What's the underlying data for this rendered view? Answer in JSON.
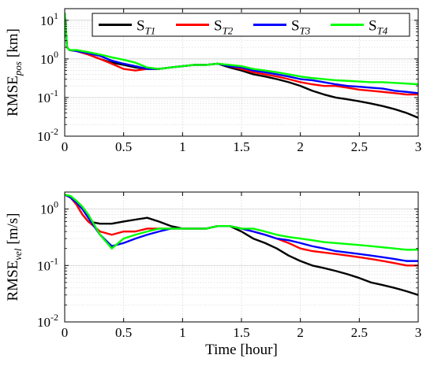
{
  "chart_data": [
    {
      "type": "line",
      "ylabel": "RMSE",
      "ylabel_sub": "pos",
      "yunit": "[km]",
      "yscale": "log",
      "xlim": [
        0,
        3
      ],
      "ylim": [
        0.01,
        20
      ],
      "xticks": [
        "0",
        "0.5",
        "1",
        "1.5",
        "2",
        "2.5",
        "3"
      ],
      "yticks": [
        {
          "base": "10",
          "exp": "-2",
          "value": 0.01
        },
        {
          "base": "10",
          "exp": "-1",
          "value": 0.1
        },
        {
          "base": "10",
          "exp": "0",
          "value": 1
        },
        {
          "base": "10",
          "exp": "1",
          "value": 10
        }
      ],
      "grid": true,
      "legend": {
        "placement": "top",
        "orientation": "horizontal"
      },
      "series": [
        {
          "name": "S",
          "sub": "T1",
          "color": "#000000",
          "x": [
            0,
            0.02,
            0.04,
            0.1,
            0.2,
            0.3,
            0.4,
            0.5,
            0.6,
            0.7,
            0.8,
            0.9,
            1.0,
            1.1,
            1.2,
            1.3,
            1.4,
            1.5,
            1.6,
            1.7,
            1.8,
            1.9,
            2.0,
            2.1,
            2.2,
            2.3,
            2.4,
            2.5,
            2.6,
            2.7,
            2.8,
            2.9,
            3.0
          ],
          "y": [
            15,
            2.0,
            1.7,
            1.6,
            1.3,
            1.0,
            0.8,
            0.7,
            0.6,
            0.55,
            0.55,
            0.6,
            0.65,
            0.7,
            0.7,
            0.75,
            0.6,
            0.5,
            0.4,
            0.35,
            0.3,
            0.25,
            0.2,
            0.15,
            0.12,
            0.1,
            0.09,
            0.08,
            0.07,
            0.06,
            0.05,
            0.04,
            0.03
          ]
        },
        {
          "name": "S",
          "sub": "T2",
          "color": "#ff0000",
          "x": [
            0,
            0.02,
            0.04,
            0.1,
            0.2,
            0.3,
            0.4,
            0.5,
            0.6,
            0.7,
            0.8,
            0.9,
            1.0,
            1.1,
            1.2,
            1.3,
            1.4,
            1.5,
            1.6,
            1.7,
            1.8,
            1.9,
            2.0,
            2.1,
            2.2,
            2.3,
            2.4,
            2.5,
            2.6,
            2.7,
            2.8,
            2.9,
            3.0
          ],
          "y": [
            15,
            2.0,
            1.7,
            1.6,
            1.3,
            1.0,
            0.75,
            0.55,
            0.5,
            0.55,
            0.55,
            0.6,
            0.65,
            0.7,
            0.7,
            0.75,
            0.65,
            0.55,
            0.45,
            0.4,
            0.35,
            0.3,
            0.25,
            0.22,
            0.2,
            0.2,
            0.18,
            0.16,
            0.15,
            0.14,
            0.13,
            0.12,
            0.12
          ]
        },
        {
          "name": "S",
          "sub": "T3",
          "color": "#0000ff",
          "x": [
            0,
            0.02,
            0.04,
            0.1,
            0.2,
            0.3,
            0.4,
            0.5,
            0.6,
            0.7,
            0.8,
            0.9,
            1.0,
            1.1,
            1.2,
            1.3,
            1.4,
            1.5,
            1.6,
            1.7,
            1.8,
            1.9,
            2.0,
            2.1,
            2.2,
            2.3,
            2.4,
            2.5,
            2.6,
            2.7,
            2.8,
            2.9,
            3.0
          ],
          "y": [
            15,
            2.0,
            1.7,
            1.6,
            1.4,
            1.2,
            0.9,
            0.75,
            0.65,
            0.55,
            0.55,
            0.6,
            0.65,
            0.7,
            0.7,
            0.75,
            0.65,
            0.6,
            0.5,
            0.45,
            0.4,
            0.35,
            0.3,
            0.28,
            0.25,
            0.22,
            0.2,
            0.19,
            0.18,
            0.17,
            0.15,
            0.14,
            0.13
          ]
        },
        {
          "name": "S",
          "sub": "T4",
          "color": "#00ff00",
          "x": [
            0,
            0.02,
            0.04,
            0.1,
            0.2,
            0.3,
            0.4,
            0.5,
            0.6,
            0.7,
            0.8,
            0.9,
            1.0,
            1.1,
            1.2,
            1.3,
            1.4,
            1.5,
            1.6,
            1.7,
            1.8,
            1.9,
            2.0,
            2.1,
            2.2,
            2.3,
            2.4,
            2.5,
            2.6,
            2.7,
            2.8,
            2.9,
            3.0
          ],
          "y": [
            15,
            2.0,
            1.7,
            1.7,
            1.5,
            1.3,
            1.1,
            0.95,
            0.8,
            0.6,
            0.55,
            0.6,
            0.65,
            0.7,
            0.7,
            0.75,
            0.7,
            0.65,
            0.55,
            0.5,
            0.45,
            0.4,
            0.35,
            0.32,
            0.3,
            0.28,
            0.27,
            0.26,
            0.25,
            0.25,
            0.24,
            0.23,
            0.22
          ]
        }
      ]
    },
    {
      "type": "line",
      "ylabel": "RMSE",
      "ylabel_sub": "vel",
      "yunit": "[m/s]",
      "xlabel": "Time [hour]",
      "yscale": "log",
      "xlim": [
        0,
        3
      ],
      "ylim": [
        0.01,
        2
      ],
      "xticks": [
        "0",
        "0.5",
        "1",
        "1.5",
        "2",
        "2.5",
        "3"
      ],
      "yticks": [
        {
          "base": "10",
          "exp": "-2",
          "value": 0.01
        },
        {
          "base": "10",
          "exp": "-1",
          "value": 0.1
        },
        {
          "base": "10",
          "exp": "0",
          "value": 1
        }
      ],
      "grid": true,
      "series": [
        {
          "name": "S",
          "sub": "T1",
          "color": "#000000",
          "x": [
            0,
            0.05,
            0.1,
            0.15,
            0.2,
            0.3,
            0.4,
            0.5,
            0.6,
            0.7,
            0.8,
            0.9,
            1.0,
            1.1,
            1.2,
            1.3,
            1.4,
            1.5,
            1.6,
            1.7,
            1.8,
            1.9,
            2.0,
            2.1,
            2.2,
            2.3,
            2.4,
            2.5,
            2.6,
            2.7,
            2.8,
            2.9,
            3.0
          ],
          "y": [
            1.8,
            1.6,
            1.2,
            0.8,
            0.6,
            0.55,
            0.55,
            0.6,
            0.65,
            0.7,
            0.6,
            0.5,
            0.45,
            0.45,
            0.45,
            0.5,
            0.5,
            0.4,
            0.3,
            0.25,
            0.2,
            0.15,
            0.12,
            0.1,
            0.09,
            0.08,
            0.07,
            0.06,
            0.05,
            0.045,
            0.04,
            0.035,
            0.03
          ]
        },
        {
          "name": "S",
          "sub": "T2",
          "color": "#ff0000",
          "x": [
            0,
            0.05,
            0.1,
            0.15,
            0.2,
            0.3,
            0.4,
            0.5,
            0.6,
            0.7,
            0.8,
            0.9,
            1.0,
            1.1,
            1.2,
            1.3,
            1.4,
            1.5,
            1.6,
            1.7,
            1.8,
            1.9,
            2.0,
            2.1,
            2.2,
            2.3,
            2.4,
            2.5,
            2.6,
            2.7,
            2.8,
            2.9,
            3.0
          ],
          "y": [
            1.8,
            1.6,
            1.2,
            0.8,
            0.6,
            0.4,
            0.35,
            0.4,
            0.4,
            0.45,
            0.45,
            0.45,
            0.45,
            0.45,
            0.45,
            0.5,
            0.5,
            0.45,
            0.4,
            0.35,
            0.3,
            0.25,
            0.2,
            0.18,
            0.17,
            0.16,
            0.15,
            0.14,
            0.13,
            0.12,
            0.11,
            0.1,
            0.1
          ]
        },
        {
          "name": "S",
          "sub": "T3",
          "color": "#0000ff",
          "x": [
            0,
            0.05,
            0.1,
            0.15,
            0.2,
            0.3,
            0.4,
            0.5,
            0.6,
            0.7,
            0.8,
            0.9,
            1.0,
            1.1,
            1.2,
            1.3,
            1.4,
            1.5,
            1.6,
            1.7,
            1.8,
            1.9,
            2.0,
            2.1,
            2.2,
            2.3,
            2.4,
            2.5,
            2.6,
            2.7,
            2.8,
            2.9,
            3.0
          ],
          "y": [
            1.8,
            1.6,
            1.3,
            1.0,
            0.7,
            0.35,
            0.22,
            0.25,
            0.3,
            0.35,
            0.4,
            0.45,
            0.45,
            0.45,
            0.45,
            0.5,
            0.5,
            0.45,
            0.4,
            0.35,
            0.3,
            0.28,
            0.25,
            0.22,
            0.2,
            0.18,
            0.17,
            0.16,
            0.15,
            0.14,
            0.13,
            0.12,
            0.12
          ]
        },
        {
          "name": "S",
          "sub": "T4",
          "color": "#00ff00",
          "x": [
            0,
            0.05,
            0.1,
            0.15,
            0.2,
            0.3,
            0.4,
            0.5,
            0.6,
            0.7,
            0.8,
            0.9,
            1.0,
            1.1,
            1.2,
            1.3,
            1.4,
            1.5,
            1.6,
            1.7,
            1.8,
            1.9,
            2.0,
            2.1,
            2.2,
            2.3,
            2.4,
            2.5,
            2.6,
            2.7,
            2.8,
            2.9,
            3.0
          ],
          "y": [
            1.8,
            1.7,
            1.4,
            1.1,
            0.8,
            0.35,
            0.2,
            0.3,
            0.35,
            0.4,
            0.45,
            0.45,
            0.45,
            0.45,
            0.45,
            0.5,
            0.5,
            0.45,
            0.45,
            0.4,
            0.35,
            0.32,
            0.3,
            0.28,
            0.26,
            0.25,
            0.24,
            0.23,
            0.22,
            0.21,
            0.2,
            0.19,
            0.19
          ]
        }
      ]
    }
  ]
}
